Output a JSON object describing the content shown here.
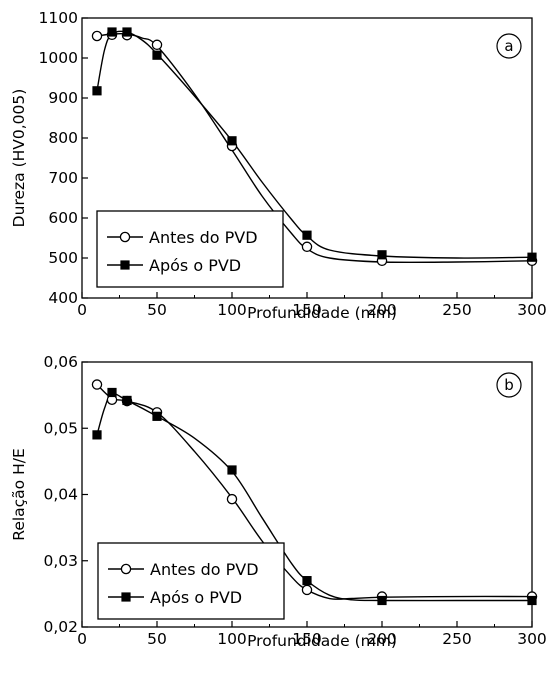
{
  "chart_data": [
    {
      "type": "line",
      "panel_label": "a",
      "xlabel": "Profundidade (mm)",
      "ylabel": "Dureza (HV0,005)",
      "xlim": [
        0,
        300
      ],
      "ylim": [
        400,
        1100
      ],
      "xticks": [
        0,
        50,
        100,
        150,
        200,
        250,
        300
      ],
      "yticks": [
        400,
        500,
        600,
        700,
        800,
        900,
        1000,
        1100
      ],
      "xtick_labels": [
        "0",
        "50",
        "100",
        "150",
        "200",
        "250",
        "300"
      ],
      "ytick_labels": [
        "400",
        "500",
        "600",
        "700",
        "800",
        "900",
        "1000",
        "1100"
      ],
      "legend_position": "bottom-left",
      "grid": false,
      "series": [
        {
          "name": "Antes do PVD",
          "marker": "open-circle",
          "x": [
            10,
            20,
            30,
            50,
            100,
            150,
            200,
            300
          ],
          "y": [
            1055,
            1058,
            1057,
            1033,
            780,
            528,
            493,
            493
          ],
          "curve_x": [
            10,
            20,
            30,
            40,
            50,
            75,
            100,
            120,
            140,
            150,
            165,
            200,
            250,
            300
          ],
          "curve_y": [
            1055,
            1060,
            1060,
            1050,
            1030,
            910,
            770,
            655,
            560,
            523,
            500,
            490,
            490,
            493
          ]
        },
        {
          "name": "Após o PVD",
          "marker": "filled-square",
          "x": [
            10,
            20,
            30,
            50,
            100,
            150,
            200,
            300
          ],
          "y": [
            918,
            1065,
            1065,
            1007,
            793,
            557,
            508,
            502
          ],
          "curve_x": [
            10,
            15,
            20,
            30,
            40,
            50,
            75,
            100,
            120,
            140,
            150,
            165,
            200,
            250,
            300
          ],
          "curve_y": [
            918,
            1020,
            1060,
            1065,
            1045,
            1010,
            905,
            793,
            690,
            595,
            555,
            520,
            505,
            500,
            502
          ]
        }
      ]
    },
    {
      "type": "line",
      "panel_label": "b",
      "xlabel": "Profundidade (mm)",
      "ylabel": "Relação H/E",
      "xlim": [
        0,
        300
      ],
      "ylim": [
        0.02,
        0.06
      ],
      "xticks": [
        0,
        50,
        100,
        150,
        200,
        250,
        300
      ],
      "yticks": [
        0.02,
        0.03,
        0.04,
        0.05,
        0.06
      ],
      "xtick_labels": [
        "0",
        "50",
        "100",
        "150",
        "200",
        "250",
        "300"
      ],
      "ytick_labels": [
        "0,02",
        "0,03",
        "0,04",
        "0,05",
        "0,06"
      ],
      "legend_position": "bottom-left",
      "grid": false,
      "series": [
        {
          "name": "Antes do PVD",
          "marker": "open-circle",
          "x": [
            10,
            20,
            30,
            50,
            100,
            150,
            200,
            300
          ],
          "y": [
            0.0566,
            0.0543,
            0.0541,
            0.0524,
            0.0393,
            0.0256,
            0.0246,
            0.0246
          ],
          "curve_x": [
            10,
            20,
            30,
            50,
            75,
            100,
            120,
            140,
            150,
            165,
            180,
            200,
            250,
            300
          ],
          "curve_y": [
            0.0566,
            0.0545,
            0.0541,
            0.0524,
            0.0465,
            0.0395,
            0.033,
            0.0275,
            0.0256,
            0.0243,
            0.0243,
            0.0245,
            0.0246,
            0.0246
          ]
        },
        {
          "name": "Após o PVD",
          "marker": "filled-square",
          "x": [
            10,
            20,
            30,
            50,
            100,
            150,
            200,
            300
          ],
          "y": [
            0.049,
            0.0554,
            0.0542,
            0.0518,
            0.0437,
            0.027,
            0.024,
            0.024
          ],
          "curve_x": [
            10,
            15,
            20,
            30,
            50,
            75,
            100,
            120,
            140,
            150,
            165,
            180,
            200,
            250,
            300
          ],
          "curve_y": [
            0.049,
            0.053,
            0.0552,
            0.0542,
            0.0518,
            0.0485,
            0.0435,
            0.0365,
            0.0295,
            0.027,
            0.0248,
            0.0241,
            0.024,
            0.024,
            0.024
          ]
        }
      ]
    }
  ]
}
